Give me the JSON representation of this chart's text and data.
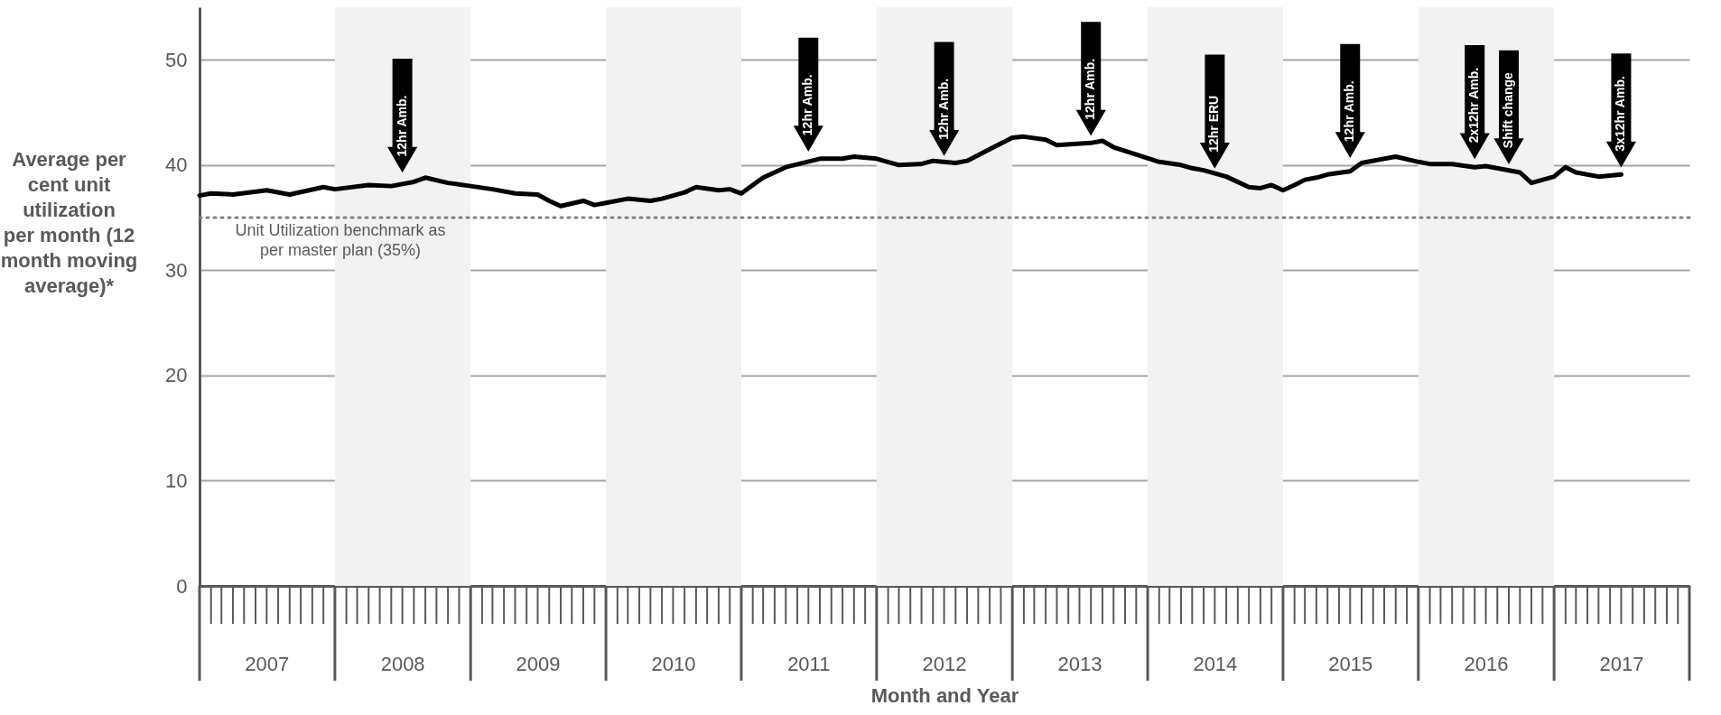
{
  "chart_data": {
    "type": "line",
    "xlabel": "Month and Year",
    "ylabel": "Average per cent unit utilization per month (12 month moving average)*",
    "x": [
      "2007-01",
      "2007-02",
      "2007-04",
      "2007-07",
      "2007-09",
      "2007-12",
      "2008-01",
      "2008-04",
      "2008-06",
      "2008-08",
      "2008-09",
      "2008-11",
      "2009-01",
      "2009-03",
      "2009-05",
      "2009-07",
      "2009-08",
      "2009-09",
      "2009-11",
      "2009-12",
      "2010-01",
      "2010-03",
      "2010-05",
      "2010-06",
      "2010-08",
      "2010-09",
      "2010-11",
      "2010-12",
      "2011-01",
      "2011-03",
      "2011-04",
      "2011-05",
      "2011-08",
      "2011-10",
      "2011-11",
      "2012-01",
      "2012-03",
      "2012-05",
      "2012-06",
      "2012-08",
      "2012-09",
      "2012-11",
      "2013-01",
      "2013-02",
      "2013-04",
      "2013-05",
      "2013-08",
      "2013-09",
      "2013-10",
      "2013-12",
      "2014-02",
      "2014-04",
      "2014-05",
      "2014-06",
      "2014-08",
      "2014-10",
      "2014-11",
      "2014-12",
      "2015-01",
      "2015-02",
      "2015-03",
      "2015-04",
      "2015-05",
      "2015-07",
      "2015-08",
      "2015-11",
      "2016-01",
      "2016-02",
      "2016-04",
      "2016-06",
      "2016-07",
      "2016-10",
      "2016-11",
      "2017-01",
      "2017-02",
      "2017-03",
      "2017-05",
      "2017-07"
    ],
    "series": [
      {
        "color": "#000000",
        "values": [
          37.1,
          37.3,
          37.2,
          37.6,
          37.2,
          37.9,
          37.7,
          38.1,
          38.0,
          38.4,
          38.8,
          38.3,
          38.0,
          37.7,
          37.3,
          37.2,
          36.6,
          36.1,
          36.6,
          36.2,
          36.4,
          36.8,
          36.6,
          36.8,
          37.4,
          37.9,
          37.6,
          37.7,
          37.3,
          38.8,
          39.3,
          39.8,
          40.6,
          40.6,
          40.8,
          40.6,
          40.0,
          40.1,
          40.4,
          40.2,
          40.4,
          41.5,
          42.6,
          42.7,
          42.4,
          41.9,
          42.1,
          42.3,
          41.7,
          41.0,
          40.3,
          40.0,
          39.7,
          39.5,
          38.9,
          37.9,
          37.8,
          38.1,
          37.6,
          38.1,
          38.6,
          38.8,
          39.1,
          39.4,
          40.2,
          40.8,
          40.3,
          40.1,
          40.1,
          39.8,
          39.9,
          39.3,
          38.3,
          38.9,
          39.8,
          39.3,
          38.9,
          39.1
        ]
      }
    ],
    "xlim": [
      "2007-01",
      "2018-01"
    ],
    "xticks": [
      {
        "value": "2007-07",
        "label": "2007"
      },
      {
        "value": "2008-07",
        "label": "2008"
      },
      {
        "value": "2009-07",
        "label": "2009"
      },
      {
        "value": "2010-07",
        "label": "2010"
      },
      {
        "value": "2011-07",
        "label": "2011"
      },
      {
        "value": "2012-07",
        "label": "2012"
      },
      {
        "value": "2013-07",
        "label": "2013"
      },
      {
        "value": "2014-07",
        "label": "2014"
      },
      {
        "value": "2015-07",
        "label": "2015"
      },
      {
        "value": "2016-07",
        "label": "2016"
      },
      {
        "value": "2017-07",
        "label": "2017"
      }
    ],
    "ylim": [
      0,
      55
    ],
    "yticks": [
      0,
      10,
      20,
      30,
      40,
      50
    ],
    "grid": "y",
    "line_style": "solid",
    "marker": "none",
    "ref_lines": [
      {
        "axis": "y",
        "value": 35,
        "label": "Unit Utilization benchmark as per master plan (35%)",
        "color": "#808080",
        "line_style": "dotted"
      }
    ],
    "bands": [
      {
        "axis": "x",
        "from": "2008-01",
        "to": "2009-01",
        "color": "#f2f2f2"
      },
      {
        "axis": "x",
        "from": "2010-01",
        "to": "2011-01",
        "color": "#f2f2f2"
      },
      {
        "axis": "x",
        "from": "2012-01",
        "to": "2013-01",
        "color": "#f2f2f2"
      },
      {
        "axis": "x",
        "from": "2014-01",
        "to": "2015-01",
        "color": "#f2f2f2"
      },
      {
        "axis": "x",
        "from": "2016-01",
        "to": "2017-01",
        "color": "#f2f2f2"
      }
    ],
    "annotations": [
      {
        "text": "12hr Amb.",
        "x": "2008-07",
        "y": 38.6
      },
      {
        "text": "12hr Amb.",
        "x": "2011-07",
        "y": 40.6
      },
      {
        "text": "12hr Amb.",
        "x": "2012-07",
        "y": 40.2
      },
      {
        "text": "12hr Amb.",
        "x": "2013-08",
        "y": 42.1
      },
      {
        "text": "12hr ERU",
        "x": "2014-07",
        "y": 39.0
      },
      {
        "text": "12hr Amb.",
        "x": "2015-07",
        "y": 40.0
      },
      {
        "text": "2x12hr Amb.",
        "x": "2016-06",
        "y": 39.9
      },
      {
        "text": "Shift change",
        "x": "2016-09",
        "y": 39.4
      },
      {
        "text": "3x12hr Amb.",
        "x": "2017-07",
        "y": 39.1
      }
    ]
  }
}
